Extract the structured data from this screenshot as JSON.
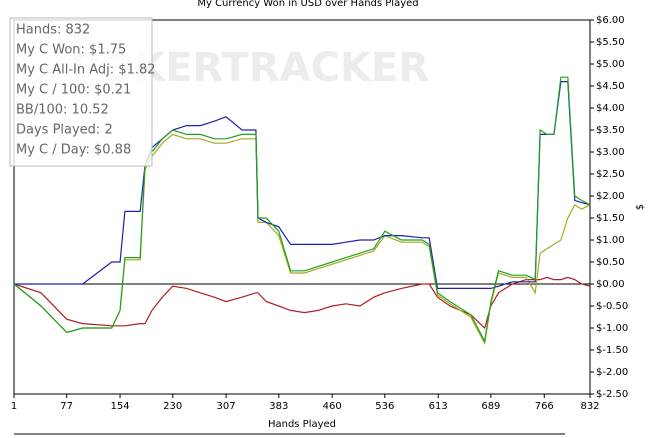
{
  "chart_data": {
    "type": "line",
    "title": "My Currency Won in USD over Hands Played",
    "xlabel": "Hands Played",
    "ylabel": "$",
    "watermark": "POKERTRACKER",
    "stats": [
      "Hands: 832",
      "My C Won: $1.75",
      "My C All-In Adj: $1.82",
      "My C / 100: $0.21",
      "BB/100: 10.52",
      "Days Played: 2",
      "My C / Day: $0.88"
    ],
    "xlim": [
      1,
      832
    ],
    "xticks": [
      1,
      77,
      154,
      230,
      307,
      383,
      460,
      536,
      613,
      689,
      766,
      832
    ],
    "ylim": [
      -2.5,
      6
    ],
    "yticks": [
      {
        "value": 6,
        "label": "$6.00"
      },
      {
        "value": 5.5,
        "label": "$5.50"
      },
      {
        "value": 5,
        "label": "$5.00"
      },
      {
        "value": 4.5,
        "label": "$4.50"
      },
      {
        "value": 4,
        "label": "$4.00"
      },
      {
        "value": 3.5,
        "label": "$3.50"
      },
      {
        "value": 3,
        "label": "$3.00"
      },
      {
        "value": 2.5,
        "label": "$2.50"
      },
      {
        "value": 2,
        "label": "$2.00"
      },
      {
        "value": 1.5,
        "label": "$1.50"
      },
      {
        "value": 1,
        "label": "$1.00"
      },
      {
        "value": 0.5,
        "label": "$0.50"
      },
      {
        "value": 0,
        "label": "$0.00"
      },
      {
        "value": -0.5,
        "label": "$-0.50"
      },
      {
        "value": -1,
        "label": "$-1.00"
      },
      {
        "value": -1.5,
        "label": "$-1.50"
      },
      {
        "value": -2,
        "label": "$-2.00"
      },
      {
        "value": -2.5,
        "label": "$-2.50"
      }
    ],
    "x": [
      1,
      40,
      77,
      100,
      142,
      154,
      161,
      183,
      190,
      200,
      215,
      230,
      250,
      270,
      290,
      307,
      330,
      350,
      353,
      365,
      383,
      400,
      420,
      440,
      460,
      480,
      500,
      520,
      536,
      560,
      590,
      600,
      612,
      630,
      660,
      680,
      689,
      700,
      720,
      740,
      753,
      760,
      770,
      780,
      790,
      800,
      810,
      820,
      832
    ],
    "series": [
      {
        "color": "#b02020",
        "values": [
          0,
          -0.2,
          -0.8,
          -0.9,
          -0.95,
          -0.95,
          -0.95,
          -0.9,
          -0.9,
          -0.6,
          -0.3,
          -0.05,
          -0.1,
          -0.2,
          -0.3,
          -0.4,
          -0.3,
          -0.2,
          -0.2,
          -0.4,
          -0.5,
          -0.6,
          -0.65,
          -0.6,
          -0.5,
          -0.45,
          -0.5,
          -0.3,
          -0.2,
          -0.1,
          0,
          0,
          -0.3,
          -0.5,
          -0.7,
          -1,
          -0.5,
          -0.2,
          0,
          0.1,
          0.1,
          0.1,
          0.15,
          0.1,
          0.1,
          0.15,
          0.1,
          0,
          -0.05
        ]
      },
      {
        "color": "#a8a820",
        "values": [
          0,
          -0.5,
          -1.1,
          -1,
          -1,
          -0.6,
          0.55,
          0.55,
          2.6,
          2.9,
          3.2,
          3.4,
          3.3,
          3.3,
          3.2,
          3.2,
          3.3,
          3.3,
          1.4,
          1.4,
          1.1,
          0.25,
          0.25,
          0.35,
          0.45,
          0.55,
          0.65,
          0.75,
          1.1,
          0.95,
          0.95,
          0.85,
          -0.25,
          -0.45,
          -0.75,
          -1.35,
          -0.45,
          0.25,
          0.15,
          0.15,
          -0.2,
          0.7,
          0.8,
          0.9,
          1,
          1.5,
          1.8,
          1.7,
          1.8
        ]
      },
      {
        "color": "#2020b0",
        "values": [
          0,
          0,
          0,
          0,
          0.5,
          0.5,
          1.65,
          1.65,
          2.7,
          3.1,
          3.3,
          3.5,
          3.6,
          3.6,
          3.7,
          3.8,
          3.5,
          3.5,
          1.5,
          1.4,
          1.3,
          0.9,
          0.9,
          0.9,
          0.9,
          0.95,
          1,
          1,
          1.1,
          1.1,
          1.05,
          1.05,
          -0.1,
          -0.1,
          -0.1,
          -0.1,
          -0.1,
          -0.05,
          0.05,
          0.05,
          0.05,
          3.4,
          3.4,
          3.4,
          4.6,
          4.6,
          1.9,
          1.85,
          1.8
        ]
      },
      {
        "color": "#20a020",
        "values": [
          0,
          -0.5,
          -1.1,
          -1,
          -1,
          -0.6,
          0.6,
          0.6,
          2.7,
          3,
          3.3,
          3.5,
          3.4,
          3.4,
          3.3,
          3.3,
          3.4,
          3.4,
          1.5,
          1.5,
          1.2,
          0.3,
          0.3,
          0.4,
          0.5,
          0.6,
          0.7,
          0.8,
          1.2,
          1,
          1,
          0.9,
          -0.2,
          -0.4,
          -0.7,
          -1.3,
          -0.4,
          0.3,
          0.2,
          0.2,
          0.1,
          3.5,
          3.4,
          3.4,
          4.7,
          4.7,
          2,
          1.9,
          1.8
        ]
      }
    ]
  }
}
